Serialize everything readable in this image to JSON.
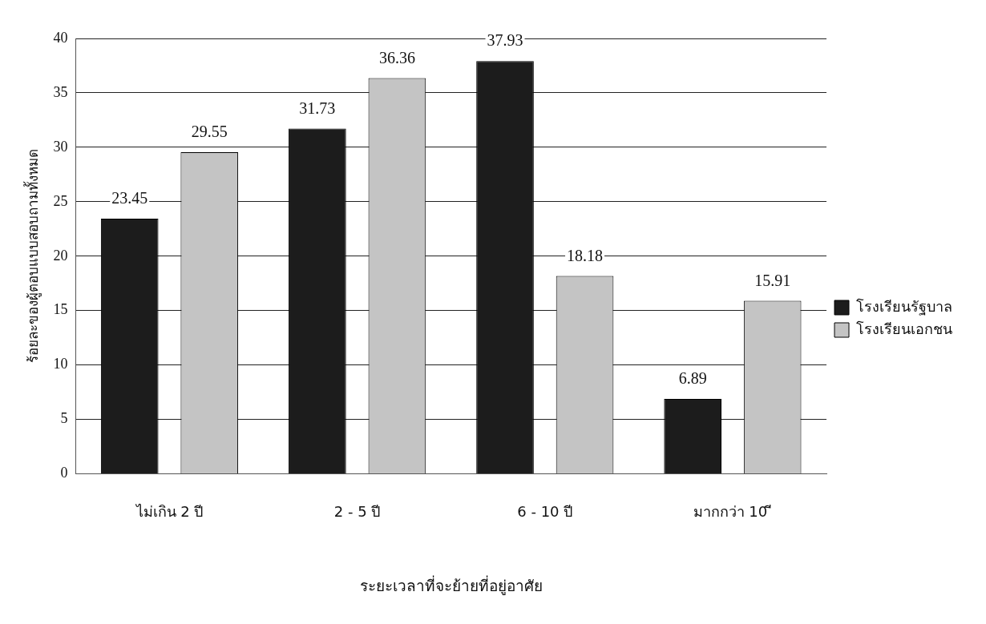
{
  "chart_data": {
    "type": "bar",
    "xlabel": "ระยะเวลาที่จะย้ายที่อยู่อาศัย",
    "ylabel": "ร้อยละของผู้ตอบแบบสอบถามทั้งหมด",
    "categories": [
      "ไม่เกิน 2 ปี",
      "2 - 5 ปี",
      "6 - 10 ปี",
      "มากกว่า 10 ี"
    ],
    "series": [
      {
        "name": "โรงเรียนรัฐบาล",
        "color": "#1c1c1c",
        "values": [
          23.45,
          31.73,
          37.93,
          6.89
        ]
      },
      {
        "name": "โรงเรียนเอกชน",
        "color": "#c4c4c4",
        "values": [
          29.55,
          36.36,
          18.18,
          15.91
        ]
      }
    ],
    "ylim": [
      0,
      40
    ],
    "yticks": [
      0,
      5,
      10,
      15,
      20,
      25,
      30,
      35,
      40
    ],
    "grid": "y",
    "legend": "right",
    "data_labels": true
  }
}
